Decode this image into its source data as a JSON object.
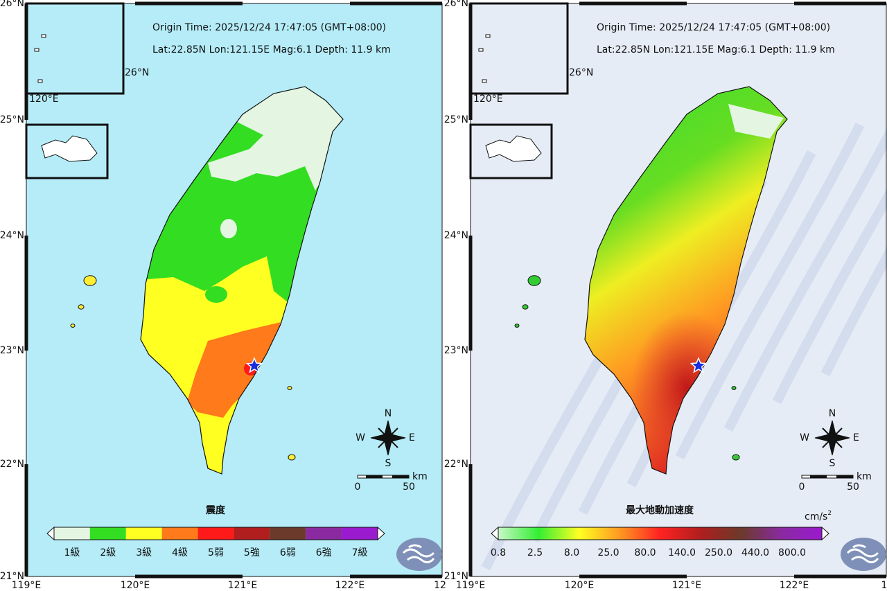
{
  "panels": [
    {
      "header": {
        "origin_time": "Origin Time: 2025/12/24  17:47:05  (GMT+08:00)",
        "location": "Lat:22.85N  Lon:121.15E  Mag:6.1  Depth: 11.9 km"
      },
      "axes": {
        "lat": [
          "26°N",
          "25°N",
          "24°N",
          "23°N",
          "22°N",
          "21°N"
        ],
        "lon": [
          "119°E",
          "120°E",
          "121°E",
          "122°E",
          "12"
        ]
      },
      "inset": {
        "lat": "26°N",
        "lon": "120°E"
      },
      "compass": {
        "north": "N",
        "east": "E",
        "south": "S",
        "west": "W"
      },
      "scale_bar": {
        "unit": "km",
        "start": "0",
        "end": "50"
      },
      "legend": {
        "title": "震度",
        "labels": [
          "1級",
          "2級",
          "3級",
          "4級",
          "5弱",
          "5強",
          "6弱",
          "6強",
          "7級"
        ],
        "colors": [
          "#e4f6e2",
          "#33dd22",
          "#ffff22",
          "#ff7a1a",
          "#ff1a1a",
          "#b01e1e",
          "#6b3a2a",
          "#8a2aa0",
          "#9a1ad0"
        ]
      }
    },
    {
      "header": {
        "origin_time": "Origin Time: 2025/12/24  17:47:05  (GMT+08:00)",
        "location": "Lat:22.85N  Lon:121.15E  Mag:6.1  Depth: 11.9 km"
      },
      "axes": {
        "lat": [
          "26°N",
          "25°N",
          "24°N",
          "23°N",
          "22°N",
          "21°N"
        ],
        "lon": [
          "119°E",
          "120°E",
          "121°E",
          "122°E",
          "1"
        ]
      },
      "inset": {
        "lat": "26°N",
        "lon": "120°E"
      },
      "compass": {
        "north": "N",
        "east": "E",
        "south": "S",
        "west": "W"
      },
      "scale_bar": {
        "unit": "km",
        "start": "0",
        "end": "50"
      },
      "legend": {
        "title": "最大地動加速度",
        "unit": "cm/s",
        "unit_exponent": "2",
        "labels": [
          "0.8",
          "2.5",
          "8.0",
          "25.0",
          "80.0",
          "140.0",
          "250.0",
          "440.0",
          "800.0"
        ],
        "colors": [
          "#c8f8c8",
          "#33ee33",
          "#ffff22",
          "#ff9922",
          "#ff2222",
          "#b01e1e",
          "#6b3a2a",
          "#8a2aa0",
          "#9a1ad0"
        ]
      }
    }
  ]
}
